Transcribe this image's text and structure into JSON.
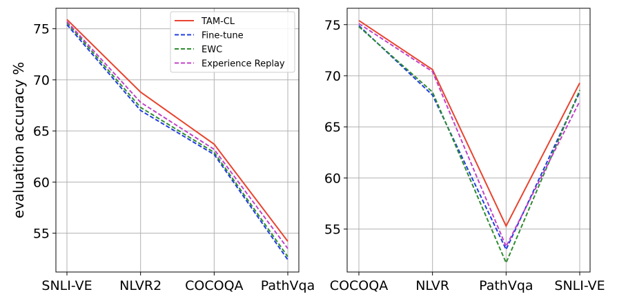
{
  "chart_data": [
    {
      "type": "line",
      "title": "",
      "xlabel": "",
      "ylabel": "evaluation accuracy %",
      "categories": [
        "SNLI-VE",
        "NLVR2",
        "COCOQA",
        "PathVqa"
      ],
      "yticks": [
        55,
        60,
        65,
        70,
        75
      ],
      "ylim": [
        51.2,
        77.0
      ],
      "grid": true,
      "legend": "top-right",
      "series": [
        {
          "name": "TAM-CL",
          "color": "#e8432e",
          "dash": "solid",
          "values": [
            75.9,
            68.8,
            63.7,
            54.2
          ]
        },
        {
          "name": "Fine-tune",
          "color": "#1f3de0",
          "dash": "dashed",
          "values": [
            75.4,
            67.0,
            62.7,
            52.4
          ]
        },
        {
          "name": "EWC",
          "color": "#2e8b2e",
          "dash": "dashed",
          "values": [
            75.6,
            67.3,
            62.9,
            52.7
          ]
        },
        {
          "name": "Experience Replay",
          "color": "#c040c8",
          "dash": "dashed",
          "values": [
            75.7,
            67.8,
            63.2,
            53.5
          ]
        }
      ]
    },
    {
      "type": "line",
      "title": "",
      "xlabel": "",
      "ylabel": "",
      "categories": [
        "COCOQA",
        "NLVR",
        "PathVqa",
        "SNLI-VE"
      ],
      "yticks": [
        55,
        60,
        65,
        70,
        75
      ],
      "ylim": [
        50.8,
        76.6
      ],
      "grid": true,
      "series": [
        {
          "name": "TAM-CL",
          "color": "#e8432e",
          "dash": "solid",
          "values": [
            75.4,
            70.6,
            55.3,
            69.3
          ]
        },
        {
          "name": "Fine-tune",
          "color": "#1f3de0",
          "dash": "dashed",
          "values": [
            74.9,
            68.1,
            53.0,
            68.4
          ]
        },
        {
          "name": "EWC",
          "color": "#2e8b2e",
          "dash": "dashed",
          "values": [
            74.8,
            68.4,
            51.7,
            68.6
          ]
        },
        {
          "name": "Experience Replay",
          "color": "#c040c8",
          "dash": "dashed",
          "values": [
            75.1,
            70.4,
            53.3,
            67.5
          ]
        }
      ]
    }
  ]
}
